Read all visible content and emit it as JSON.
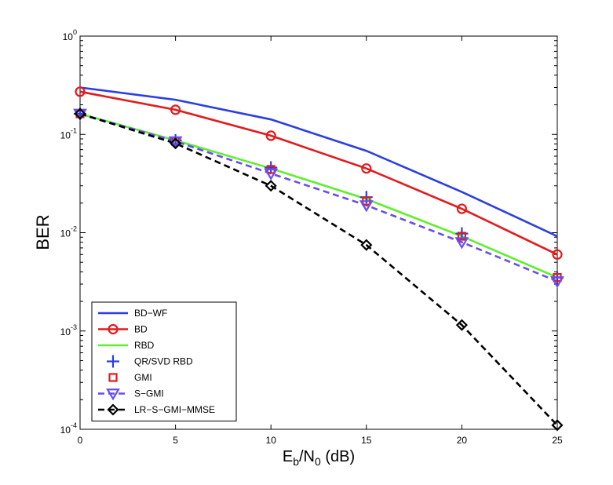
{
  "chart_data": {
    "type": "line",
    "title": "",
    "xlabel": {
      "main": "E",
      "sub": "b",
      "mid": "/N",
      "sub2": "0",
      "tail": " (dB)"
    },
    "ylabel": "BER",
    "xlim": [
      0,
      25
    ],
    "ylim": [
      0.0001,
      1
    ],
    "yscale": "log",
    "x_ticks": [
      {
        "value": 0,
        "label": "0"
      },
      {
        "value": 5,
        "label": "5"
      },
      {
        "value": 10,
        "label": "10"
      },
      {
        "value": 15,
        "label": "15"
      },
      {
        "value": 20,
        "label": "20"
      },
      {
        "value": 25,
        "label": "25"
      }
    ],
    "y_ticks": [
      {
        "value": 1,
        "base": "10",
        "exp": "0"
      },
      {
        "value": 0.1,
        "base": "10",
        "exp": "-1"
      },
      {
        "value": 0.01,
        "base": "10",
        "exp": "-2"
      },
      {
        "value": 0.001,
        "base": "10",
        "exp": "-3"
      },
      {
        "value": 0.0001,
        "base": "10",
        "exp": "-4"
      }
    ],
    "x": [
      0,
      5,
      10,
      15,
      20,
      25
    ],
    "legend_position": "bottom-left",
    "series": [
      {
        "name": "BD−WF",
        "color": "#2b3ee6",
        "dash": "solid",
        "marker": "none",
        "values": [
          0.3,
          0.225,
          0.142,
          0.068,
          0.026,
          0.0092
        ]
      },
      {
        "name": "BD",
        "color": "#e41a1c",
        "dash": "solid",
        "marker": "circle",
        "values": [
          0.272,
          0.178,
          0.097,
          0.045,
          0.0175,
          0.006
        ]
      },
      {
        "name": "RBD",
        "color": "#5df02c",
        "dash": "solid",
        "marker": "none",
        "values": [
          0.162,
          0.087,
          0.045,
          0.022,
          0.0092,
          0.0035
        ]
      },
      {
        "name": "QR/SVD RBD",
        "color": "#2b3ee6",
        "dash": "none",
        "marker": "plus",
        "values": [
          0.162,
          0.087,
          0.046,
          0.023,
          0.0098,
          0.0035
        ]
      },
      {
        "name": "GMI",
        "color": "#e41a1c",
        "dash": "none",
        "marker": "square",
        "values": [
          0.162,
          0.085,
          0.044,
          0.021,
          0.0092,
          0.0035
        ]
      },
      {
        "name": "S−GMI",
        "color": "#6a4cf0",
        "dash": "dashed",
        "marker": "triangle-down",
        "values": [
          0.162,
          0.085,
          0.04,
          0.019,
          0.008,
          0.0032
        ]
      },
      {
        "name": "LR−S−GMI−MMSE",
        "color": "#000000",
        "dash": "dashed",
        "marker": "diamond",
        "values": [
          0.162,
          0.081,
          0.03,
          0.0075,
          0.00115,
          0.00011
        ]
      }
    ]
  }
}
